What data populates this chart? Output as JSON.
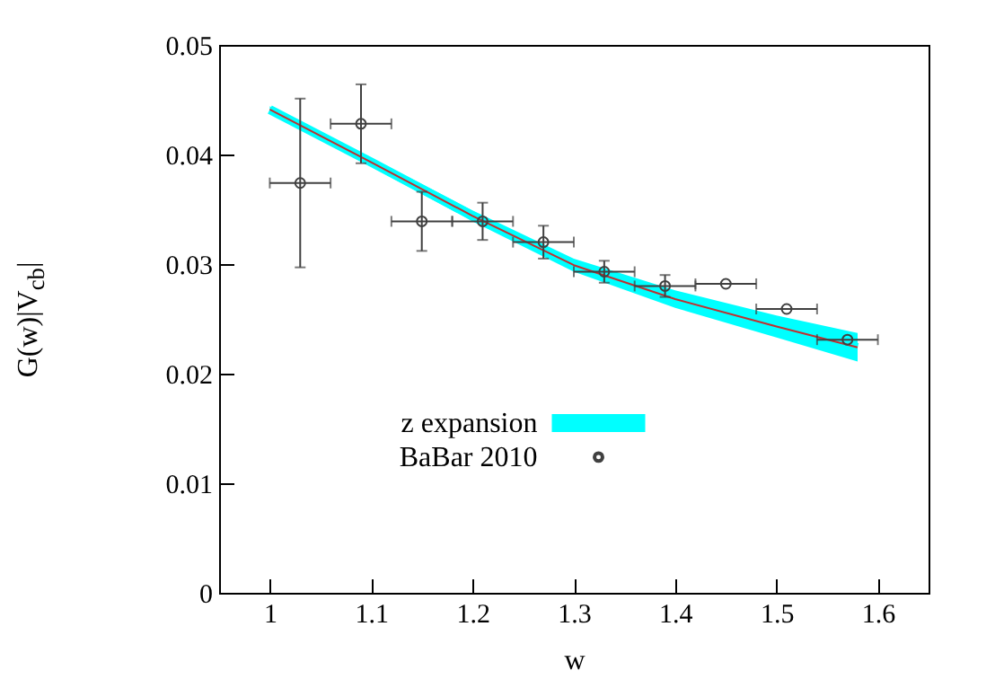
{
  "chart_data": {
    "type": "scatter",
    "xlabel": "w",
    "ylabel": "G(w)|V$_{cb}$|",
    "xlim": [
      0.95,
      1.65
    ],
    "xticks": [
      1,
      1.1,
      1.2,
      1.3,
      1.4,
      1.5,
      1.6
    ],
    "ylim": [
      0,
      0.05
    ],
    "yticks": [
      0,
      0.01,
      0.02,
      0.03,
      0.04,
      0.05
    ],
    "legend": "bottom",
    "series": [
      {
        "name": "z expansion",
        "type": "line",
        "color": "#00ffff",
        "x": [
          1,
          1.1,
          1.2,
          1.3,
          1.4,
          1.5,
          1.58
        ],
        "values": [
          0.0441,
          0.0393,
          0.0344,
          0.0299,
          0.0268,
          0.0243,
          0.0224
        ],
        "lower": [
          0.0438,
          0.0389,
          0.0339,
          0.0293,
          0.026,
          0.0233,
          0.0211
        ],
        "upper": [
          0.0444,
          0.0397,
          0.0349,
          0.0305,
          0.0276,
          0.0253,
          0.0237
        ]
      },
      {
        "type": "line",
        "color": "#c03030",
        "x": [
          1,
          1.1,
          1.2,
          1.3,
          1.4,
          1.5,
          1.58
        ],
        "values": [
          0.0441,
          0.0393,
          0.0344,
          0.0299,
          0.0268,
          0.0243,
          0.0224
        ]
      },
      {
        "name": "BaBar 2010",
        "color": "#404040",
        "marker": "circle",
        "x": [
          1.03,
          1.09,
          1.15,
          1.21,
          1.27,
          1.33,
          1.39,
          1.45,
          1.51,
          1.57
        ],
        "values": [
          0.0374,
          0.0428,
          0.0339,
          0.0339,
          0.032,
          0.0293,
          0.028,
          0.0282,
          0.0259,
          0.0231
        ],
        "errors": [
          0.0077,
          0.0036,
          0.0027,
          0.0017,
          0.0015,
          0.001,
          0.001,
          null,
          null,
          null
        ],
        "xerrors": [
          0.03,
          0.03,
          0.03,
          0.03,
          0.03,
          0.03,
          0.03,
          0.03,
          0.03,
          0.03
        ]
      }
    ]
  }
}
